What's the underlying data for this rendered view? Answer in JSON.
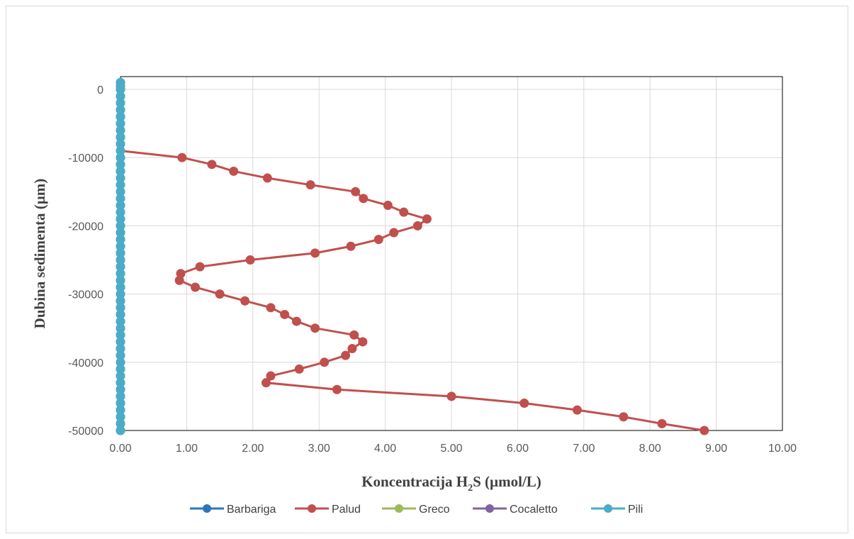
{
  "chart_data": {
    "type": "line",
    "xlabel": "Koncentracija H",
    "xlabel_sub": "2",
    "xlabel_tail": "S (µmol/L)",
    "ylabel": "Dubina sedimenta (µm)",
    "xlim": [
      0,
      10
    ],
    "ylim": [
      -50000,
      0
    ],
    "x_ticks": [
      "0.00",
      "1.00",
      "2.00",
      "3.00",
      "4.00",
      "5.00",
      "6.00",
      "7.00",
      "8.00",
      "9.00",
      "10.00"
    ],
    "y_ticks": [
      "0",
      "-10000",
      "-20000",
      "-30000",
      "-40000",
      "-50000"
    ],
    "grid": true,
    "legend_position": "bottom",
    "series": [
      {
        "name": "Barbariga",
        "color": "#2e75b6",
        "x": [
          0,
          0,
          0,
          0,
          0,
          0,
          0,
          0,
          0,
          0,
          0,
          0,
          0,
          0,
          0,
          0,
          0,
          0,
          0,
          0,
          0,
          0,
          0,
          0,
          0,
          0,
          0,
          0,
          0,
          0,
          0,
          0,
          0,
          0,
          0,
          0,
          0,
          0,
          0,
          0,
          0,
          0,
          0,
          0,
          0,
          0,
          0,
          0,
          0,
          0,
          0,
          0,
          0
        ],
        "y": [
          1000,
          500,
          0,
          -1000,
          -2000,
          -3000,
          -4000,
          -5000,
          -6000,
          -7000,
          -8000,
          -9000,
          -10000,
          -11000,
          -12000,
          -13000,
          -14000,
          -15000,
          -16000,
          -17000,
          -18000,
          -19000,
          -20000,
          -21000,
          -22000,
          -23000,
          -24000,
          -25000,
          -26000,
          -27000,
          -28000,
          -29000,
          -30000,
          -31000,
          -32000,
          -33000,
          -34000,
          -35000,
          -36000,
          -37000,
          -38000,
          -39000,
          -40000,
          -41000,
          -42000,
          -43000,
          -44000,
          -45000,
          -46000,
          -47000,
          -48000,
          -49000,
          -50000
        ]
      },
      {
        "name": "Palud",
        "color": "#c0504d",
        "x": [
          0,
          0.93,
          1.38,
          1.71,
          2.22,
          2.87,
          3.55,
          3.67,
          4.04,
          4.28,
          4.63,
          4.49,
          4.13,
          3.9,
          3.48,
          2.94,
          1.96,
          1.2,
          0.91,
          0.89,
          1.13,
          1.5,
          1.88,
          2.27,
          2.48,
          2.66,
          2.94,
          3.53,
          3.66,
          3.5,
          3.4,
          3.08,
          2.7,
          2.27,
          2.2,
          3.27,
          5.0,
          6.1,
          6.9,
          7.6,
          8.18,
          8.82
        ],
        "y": [
          -9000,
          -10000,
          -11000,
          -12000,
          -13000,
          -14000,
          -15000,
          -16000,
          -17000,
          -18000,
          -19000,
          -20000,
          -21000,
          -22000,
          -23000,
          -24000,
          -25000,
          -26000,
          -27000,
          -28000,
          -29000,
          -30000,
          -31000,
          -32000,
          -33000,
          -34000,
          -35000,
          -36000,
          -37000,
          -38000,
          -39000,
          -40000,
          -41000,
          -42000,
          -43000,
          -44000,
          -45000,
          -46000,
          -47000,
          -48000,
          -49000,
          -50000
        ],
        "marker_from_index": 1
      },
      {
        "name": "Greco",
        "color": "#9bbb59",
        "x": [],
        "y": []
      },
      {
        "name": "Cocaletto",
        "color": "#8064a2",
        "x": [],
        "y": []
      },
      {
        "name": "Pili",
        "color": "#4bacc6",
        "x": [
          0,
          0,
          0,
          0,
          0,
          0,
          0,
          0,
          0,
          0,
          0,
          0,
          0,
          0,
          0,
          0,
          0,
          0,
          0,
          0,
          0,
          0,
          0,
          0,
          0,
          0,
          0,
          0,
          0,
          0,
          0,
          0,
          0,
          0,
          0,
          0,
          0,
          0,
          0,
          0,
          0,
          0,
          0,
          0,
          0,
          0,
          0,
          0,
          0,
          0,
          0,
          0,
          0
        ],
        "y": [
          1000,
          500,
          0,
          -1000,
          -2000,
          -3000,
          -4000,
          -5000,
          -6000,
          -7000,
          -8000,
          -9000,
          -10000,
          -11000,
          -12000,
          -13000,
          -14000,
          -15000,
          -16000,
          -17000,
          -18000,
          -19000,
          -20000,
          -21000,
          -22000,
          -23000,
          -24000,
          -25000,
          -26000,
          -27000,
          -28000,
          -29000,
          -30000,
          -31000,
          -32000,
          -33000,
          -34000,
          -35000,
          -36000,
          -37000,
          -38000,
          -39000,
          -40000,
          -41000,
          -42000,
          -43000,
          -44000,
          -45000,
          -46000,
          -47000,
          -48000,
          -49000,
          -50000
        ]
      }
    ]
  }
}
